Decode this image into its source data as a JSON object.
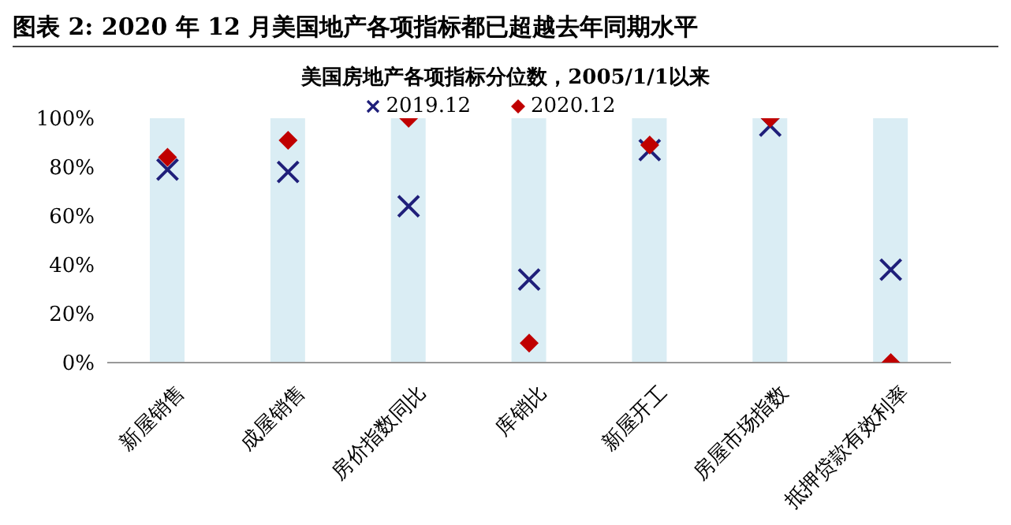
{
  "chart_data": {
    "type": "scatter",
    "title": "图表 2: 2020 年 12 月美国地产各项指标都已超越去年同期水平",
    "subtitle": "美国房地产各项指标分位数，2005/1/1以来",
    "categories": [
      "新屋销售",
      "成屋销售",
      "房价指数同比",
      "库销比",
      "新屋开工",
      "房屋市场指数",
      "抵押贷款有效利率"
    ],
    "series": [
      {
        "type": "bar",
        "color": "#daedf4",
        "values": [
          100,
          100,
          100,
          100,
          100,
          100,
          100
        ]
      },
      {
        "name": "2019.12",
        "color": "#1f1f7a",
        "marker": "cross",
        "values": [
          79,
          78,
          64,
          34,
          87,
          97,
          38
        ]
      },
      {
        "name": "2020.12",
        "color": "#c00000",
        "marker": "diamond",
        "values": [
          84,
          91,
          100,
          8,
          89,
          100,
          0
        ]
      }
    ],
    "ylim": [
      0,
      100
    ],
    "yticks": [
      {
        "value": 0,
        "label": "0%"
      },
      {
        "value": 20,
        "label": "20%"
      },
      {
        "value": 40,
        "label": "40%"
      },
      {
        "value": 60,
        "label": "60%"
      },
      {
        "value": 80,
        "label": "80%"
      },
      {
        "value": 100,
        "label": "100%"
      }
    ],
    "grid": false,
    "legend": "top"
  }
}
